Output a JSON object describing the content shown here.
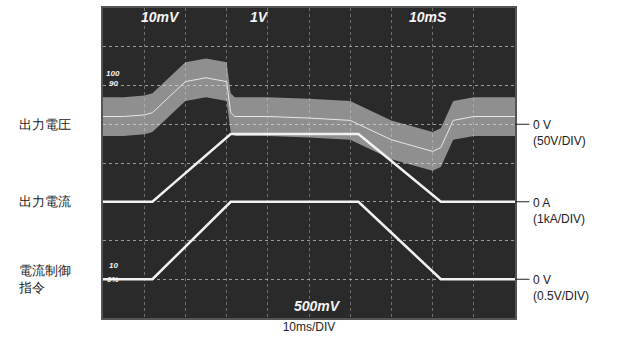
{
  "chart_data": {
    "type": "line",
    "x_label": "10ms/DIV",
    "x": [
      0,
      5,
      10,
      12,
      16,
      20,
      25,
      30,
      31,
      32,
      40,
      50,
      60,
      62,
      70,
      80,
      82,
      85,
      90,
      100
    ],
    "xlim": [
      0,
      100
    ],
    "xticks": [
      0,
      10,
      20,
      30,
      40,
      50,
      60,
      70,
      80,
      90,
      100
    ],
    "ylim": [
      -250,
      150
    ],
    "yticks": [
      -250,
      -200,
      -150,
      -100,
      -50,
      0,
      50,
      100,
      150
    ],
    "y2lim": [
      -3000,
      5000
    ],
    "y2ticks": [
      -3000,
      -2000,
      -1000,
      0,
      1000,
      2000,
      3000,
      4000,
      5000
    ],
    "y3lim": [
      -0.5,
      3.5
    ],
    "y3ticks": [
      -0.5,
      0,
      0.5,
      1,
      1.5,
      2,
      2.5,
      3,
      3.5
    ],
    "grid": true,
    "tick_labels": false,
    "screen_texts": [
      "10mV",
      "1V",
      "10mS",
      "500mV",
      "100",
      "90",
      "10",
      "0%"
    ],
    "series": [
      {
        "name": "出力電圧",
        "color": "#e8e8e8",
        "axis": "y",
        "zero_label": "0 V",
        "scale_label": "(50V/DIV)",
        "values": [
          10,
          10,
          12,
          15,
          35,
          55,
          60,
          55,
          15,
          10,
          10,
          8,
          5,
          0,
          -20,
          -35,
          -30,
          5,
          10,
          10
        ],
        "lower": [
          -15,
          -15,
          -13,
          -10,
          10,
          30,
          35,
          30,
          -10,
          -15,
          -15,
          -17,
          -20,
          -25,
          -45,
          -60,
          -55,
          -20,
          -15,
          -15
        ],
        "upper": [
          35,
          35,
          37,
          40,
          60,
          80,
          85,
          80,
          40,
          35,
          35,
          33,
          30,
          25,
          5,
          -10,
          -5,
          30,
          35,
          35
        ]
      },
      {
        "name": "出力電流",
        "color": "#f2f2f2",
        "axis": "y2",
        "zero_label": "0 A",
        "scale_label": "(1kA/DIV)",
        "values": [
          0,
          0,
          0,
          0,
          370,
          740,
          1200,
          1660,
          1750,
          1750,
          1750,
          1750,
          1750,
          1750,
          1050,
          175,
          0,
          0,
          0,
          0
        ]
      },
      {
        "name": "電流制御\n指令",
        "color": "#f2f2f2",
        "axis": "y3",
        "zero_label": "0 V",
        "scale_label": "(0.5V/DIV)",
        "values": [
          0,
          0,
          0,
          0,
          0.21,
          0.42,
          0.68,
          0.95,
          1,
          1,
          1,
          1,
          1,
          1,
          0.6,
          0.1,
          0,
          0,
          0,
          0
        ]
      }
    ]
  }
}
